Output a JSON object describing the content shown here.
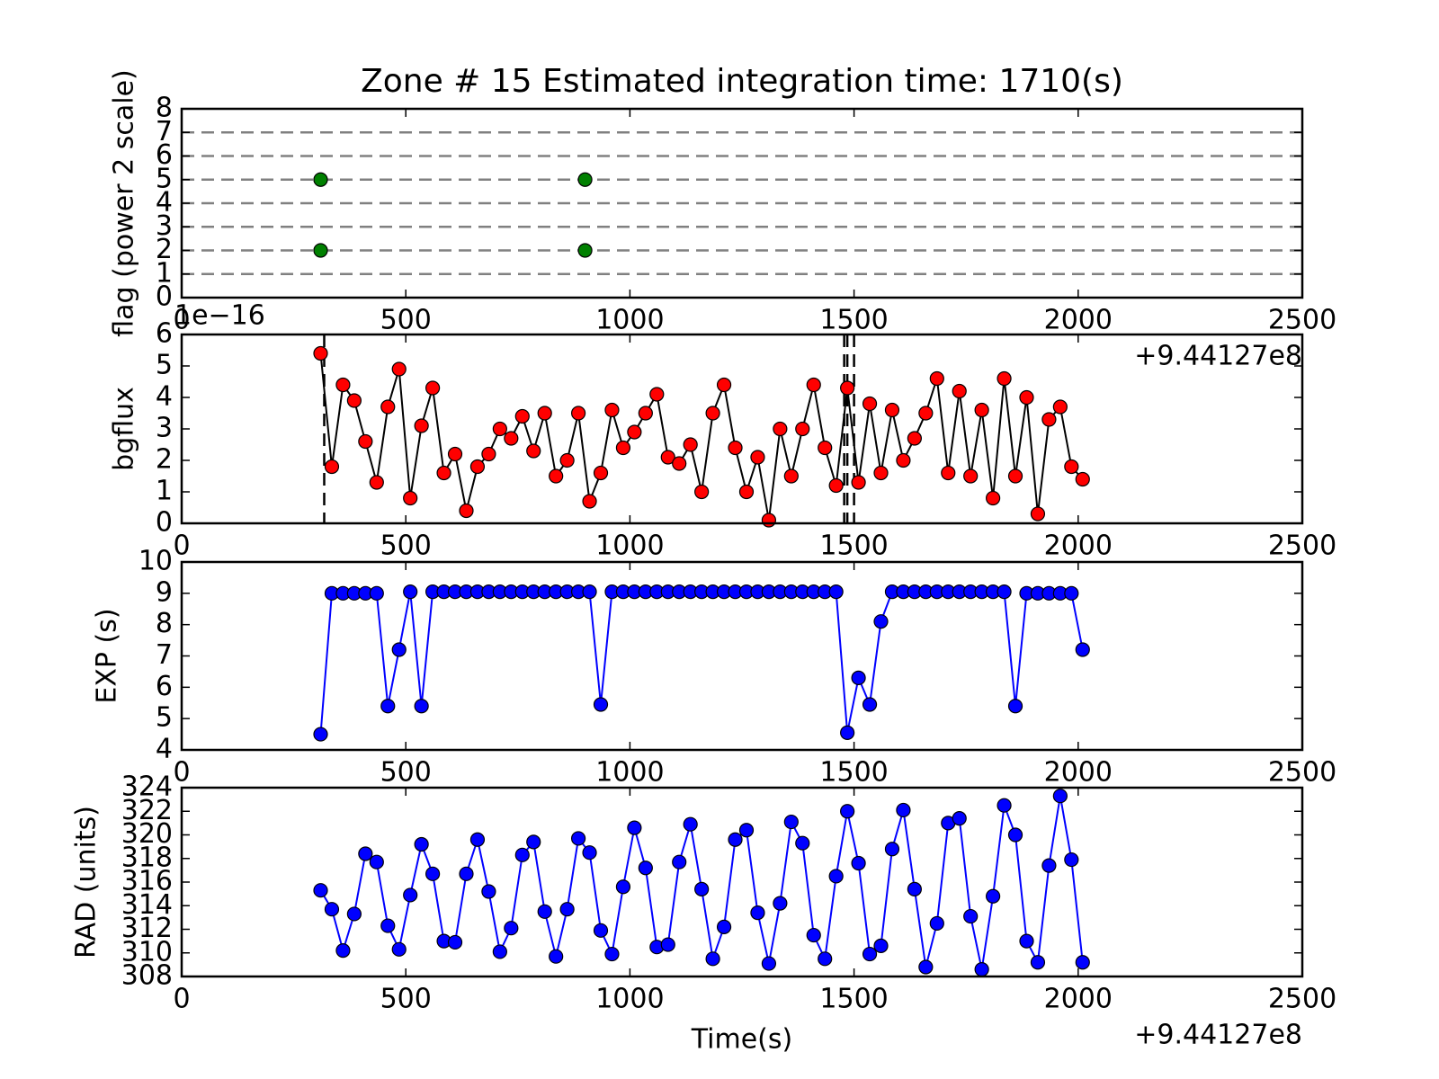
{
  "chart_data": [
    {
      "type": "scatter",
      "title": "Zone # 15 Estimated integration time: 1710(s)",
      "ylabel": "flag (power 2 scale)",
      "x": [
        310,
        310,
        900,
        900
      ],
      "values": [
        5,
        2,
        5,
        2
      ],
      "marker_color": "#008000",
      "line": false,
      "xlim": [
        0,
        2500
      ],
      "xticks": [
        0,
        500,
        1000,
        1500,
        2000,
        2500
      ],
      "x_offset_label": "+9.44127e8",
      "ylim": [
        0,
        8
      ],
      "yticks": [
        0,
        1,
        2,
        3,
        4,
        5,
        6,
        7,
        8
      ],
      "hlines": [
        1,
        2,
        3,
        4,
        5,
        6,
        7
      ]
    },
    {
      "type": "line",
      "ylabel": "bgflux",
      "y_offset_label": "1e−16",
      "x": [
        310,
        335,
        360,
        385,
        410,
        435,
        460,
        485,
        510,
        535,
        560,
        585,
        610,
        635,
        660,
        685,
        710,
        735,
        760,
        785,
        810,
        835,
        860,
        885,
        910,
        935,
        960,
        985,
        1010,
        1035,
        1060,
        1085,
        1110,
        1135,
        1160,
        1185,
        1210,
        1235,
        1260,
        1285,
        1310,
        1335,
        1360,
        1385,
        1410,
        1435,
        1460,
        1485,
        1510,
        1535,
        1560,
        1585,
        1610,
        1635,
        1660,
        1685,
        1710,
        1735,
        1760,
        1785,
        1810,
        1835,
        1860,
        1885,
        1910,
        1935,
        1960,
        1985,
        2010
      ],
      "values": [
        5.4,
        1.8,
        4.4,
        3.9,
        2.6,
        1.3,
        3.7,
        4.9,
        0.8,
        3.1,
        4.3,
        1.6,
        2.2,
        0.4,
        1.8,
        2.2,
        3.0,
        2.7,
        3.4,
        2.3,
        3.5,
        1.5,
        2.0,
        3.5,
        0.7,
        1.6,
        3.6,
        2.4,
        2.9,
        3.5,
        4.1,
        2.1,
        1.9,
        2.5,
        1.0,
        3.5,
        4.4,
        2.4,
        1.0,
        2.1,
        0.1,
        3.0,
        1.5,
        3.0,
        4.4,
        2.4,
        1.2,
        4.3,
        1.3,
        3.8,
        1.6,
        3.6,
        2.0,
        2.7,
        3.5,
        4.6,
        1.6,
        4.2,
        1.5,
        3.6,
        0.8,
        4.6,
        1.5,
        4.0,
        0.3,
        3.3,
        3.7,
        1.8,
        1.4
      ],
      "marker_color": "#ff0000",
      "line": true,
      "line_color": "#000000",
      "xlim": [
        0,
        2500
      ],
      "xticks": [
        0,
        500,
        1000,
        1500,
        2000,
        2500
      ],
      "ylim": [
        0,
        6
      ],
      "yticks": [
        0,
        1,
        2,
        3,
        4,
        5,
        6
      ],
      "vlines": [
        318,
        1478,
        1485,
        1500
      ]
    },
    {
      "type": "line",
      "ylabel": "EXP (s)",
      "x": [
        310,
        335,
        360,
        385,
        410,
        435,
        460,
        485,
        510,
        535,
        560,
        585,
        610,
        635,
        660,
        685,
        710,
        735,
        760,
        785,
        810,
        835,
        860,
        885,
        910,
        935,
        960,
        985,
        1010,
        1035,
        1060,
        1085,
        1110,
        1135,
        1160,
        1185,
        1210,
        1235,
        1260,
        1285,
        1310,
        1335,
        1360,
        1385,
        1410,
        1435,
        1460,
        1485,
        1510,
        1535,
        1560,
        1585,
        1610,
        1635,
        1660,
        1685,
        1710,
        1735,
        1760,
        1785,
        1810,
        1835,
        1860,
        1885,
        1910,
        1935,
        1960,
        1985,
        2010
      ],
      "values": [
        4.5,
        9.0,
        9.0,
        9.0,
        9.0,
        9.0,
        5.4,
        7.2,
        9.05,
        5.4,
        9.05,
        9.05,
        9.05,
        9.05,
        9.05,
        9.05,
        9.05,
        9.05,
        9.05,
        9.05,
        9.05,
        9.05,
        9.05,
        9.05,
        9.05,
        5.45,
        9.05,
        9.05,
        9.05,
        9.05,
        9.05,
        9.05,
        9.05,
        9.05,
        9.05,
        9.05,
        9.05,
        9.05,
        9.05,
        9.05,
        9.05,
        9.05,
        9.05,
        9.05,
        9.05,
        9.05,
        9.05,
        4.55,
        6.3,
        5.45,
        8.1,
        9.05,
        9.05,
        9.05,
        9.05,
        9.05,
        9.05,
        9.05,
        9.05,
        9.05,
        9.05,
        9.05,
        5.4,
        9.0,
        9.0,
        9.0,
        9.0,
        9.0,
        7.2
      ],
      "marker_color": "#0000ff",
      "line": true,
      "line_color": "#0000ff",
      "xlim": [
        0,
        2500
      ],
      "xticks": [
        0,
        500,
        1000,
        1500,
        2000,
        2500
      ],
      "ylim": [
        4,
        10
      ],
      "yticks": [
        4,
        5,
        6,
        7,
        8,
        9,
        10
      ]
    },
    {
      "type": "line",
      "ylabel": "RAD (units)",
      "xlabel": "Time(s)",
      "x": [
        310,
        335,
        360,
        385,
        410,
        435,
        460,
        485,
        510,
        535,
        560,
        585,
        610,
        635,
        660,
        685,
        710,
        735,
        760,
        785,
        810,
        835,
        860,
        885,
        910,
        935,
        960,
        985,
        1010,
        1035,
        1060,
        1085,
        1110,
        1135,
        1160,
        1185,
        1210,
        1235,
        1260,
        1285,
        1310,
        1335,
        1360,
        1385,
        1410,
        1435,
        1460,
        1485,
        1510,
        1535,
        1560,
        1585,
        1610,
        1635,
        1660,
        1685,
        1710,
        1735,
        1760,
        1785,
        1810,
        1835,
        1860,
        1885,
        1910,
        1935,
        1960,
        1985,
        2010
      ],
      "values": [
        315.3,
        313.7,
        310.2,
        313.3,
        318.4,
        317.7,
        312.3,
        310.3,
        314.9,
        319.2,
        316.7,
        311.0,
        310.9,
        316.7,
        319.6,
        315.2,
        310.1,
        312.1,
        318.3,
        319.4,
        313.5,
        309.7,
        313.7,
        319.7,
        318.5,
        311.9,
        309.9,
        315.6,
        320.6,
        317.2,
        310.5,
        310.7,
        317.7,
        320.9,
        315.4,
        309.5,
        312.2,
        319.6,
        320.4,
        313.4,
        309.1,
        314.2,
        321.1,
        319.3,
        311.5,
        309.5,
        316.5,
        322.0,
        317.6,
        309.9,
        310.6,
        318.8,
        322.1,
        315.4,
        308.8,
        312.5,
        321.0,
        321.4,
        313.1,
        308.6,
        314.8,
        322.5,
        320.0,
        311.0,
        309.2,
        317.4,
        323.3,
        317.9,
        309.2
      ],
      "marker_color": "#0000ff",
      "line": true,
      "line_color": "#0000ff",
      "xlim": [
        0,
        2500
      ],
      "xticks": [
        0,
        500,
        1000,
        1500,
        2000,
        2500
      ],
      "x_offset_label": "+9.44127e8",
      "ylim": [
        308,
        324
      ],
      "yticks": [
        308,
        310,
        312,
        314,
        316,
        318,
        320,
        322,
        324
      ]
    }
  ]
}
